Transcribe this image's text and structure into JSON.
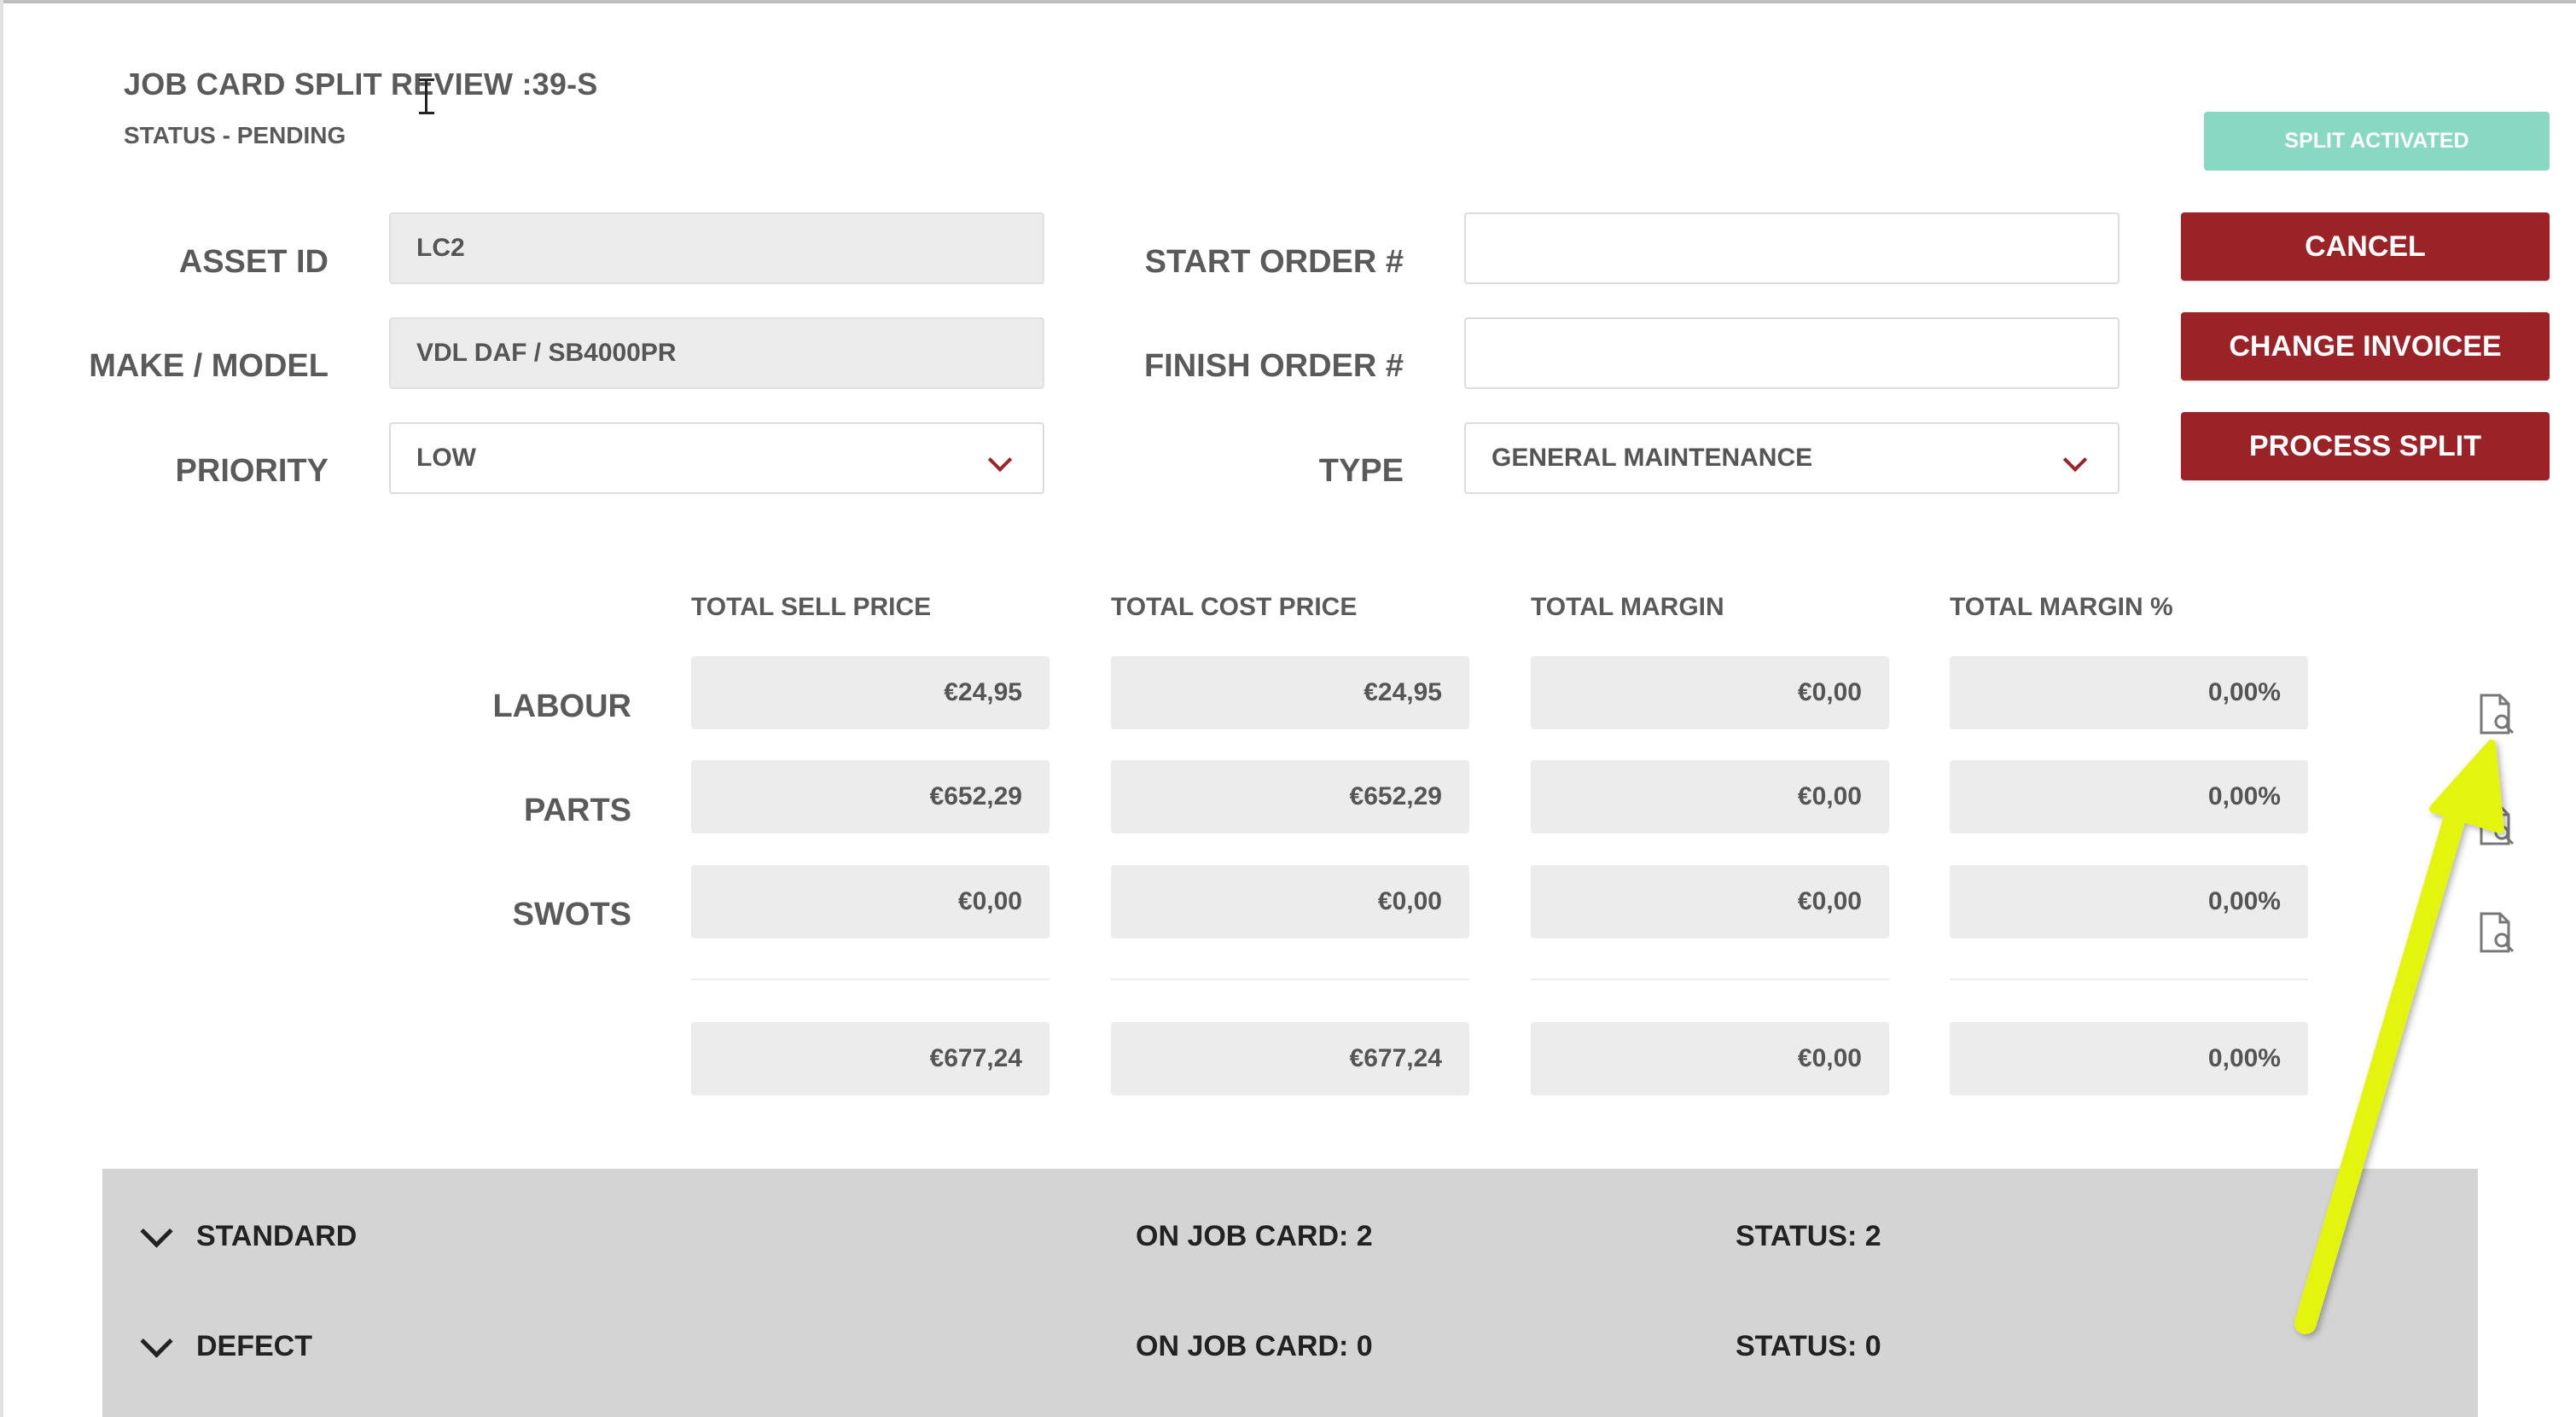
{
  "header": {
    "title": "JOB CARD SPLIT REVIEW :39-S",
    "status": "STATUS - PENDING"
  },
  "badge": {
    "label": "SPLIT ACTIVATED",
    "color": "#88d8c3"
  },
  "actions": {
    "cancel": "CANCEL",
    "change_invoicee": "CHANGE INVOICEE",
    "process_split": "PROCESS SPLIT",
    "color": "#9b2226"
  },
  "form": {
    "asset_id": {
      "label": "ASSET ID",
      "value": "LC2"
    },
    "make_model": {
      "label": "MAKE / MODEL",
      "value": "VDL DAF / SB4000PR"
    },
    "priority": {
      "label": "PRIORITY",
      "value": "LOW"
    },
    "start_order": {
      "label": "START ORDER #",
      "value": ""
    },
    "finish_order": {
      "label": "FINISH ORDER #",
      "value": ""
    },
    "type": {
      "label": "TYPE",
      "value": "GENERAL MAINTENANCE"
    }
  },
  "totals": {
    "columns": [
      "TOTAL SELL PRICE",
      "TOTAL COST PRICE",
      "TOTAL MARGIN",
      "TOTAL MARGIN %"
    ],
    "rows": [
      {
        "label": "LABOUR",
        "values": [
          "€24,95",
          "€24,95",
          "€0,00",
          "0,00%"
        ]
      },
      {
        "label": "PARTS",
        "values": [
          "€652,29",
          "€652,29",
          "€0,00",
          "0,00%"
        ]
      },
      {
        "label": "SWOTS",
        "values": [
          "€0,00",
          "€0,00",
          "€0,00",
          "0,00%"
        ]
      }
    ],
    "sum": [
      "€677,24",
      "€677,24",
      "€0,00",
      "0,00%"
    ]
  },
  "row_icons": [
    "document-search-icon",
    "document-search-icon",
    "document-search-icon"
  ],
  "sections": [
    {
      "name": "STANDARD",
      "on_job_card": "ON JOB CARD: 2",
      "status": "STATUS: 2"
    },
    {
      "name": "DEFECT",
      "on_job_card": "ON JOB CARD: 0",
      "status": "STATUS: 0"
    }
  ],
  "annotation": {
    "arrow_color": "#e3f510"
  }
}
